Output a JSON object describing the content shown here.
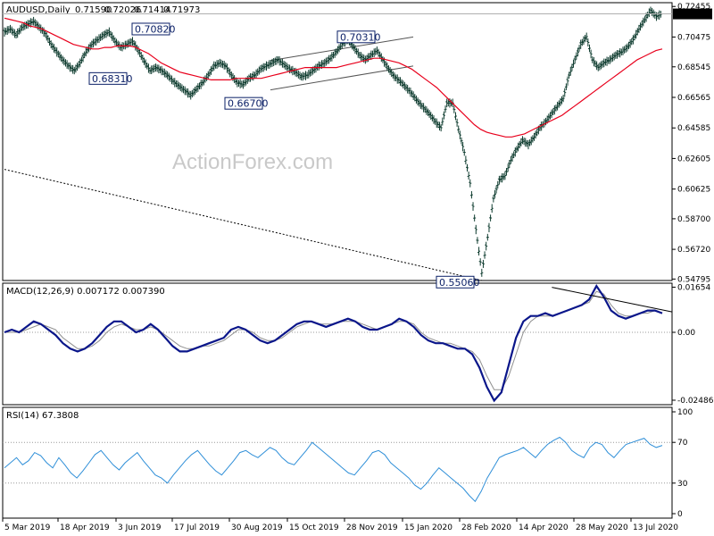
{
  "chart_data": [
    {
      "type": "candlestick",
      "symbol": "AUDUSD,Daily",
      "ohlc_header": [
        "0.71590",
        "0.72026",
        "0.71414",
        "0.71973"
      ],
      "last_price": "0.71973",
      "ylim": [
        0.547,
        0.727
      ],
      "y_ticks": [
        "0.72455",
        "0.70475",
        "0.68545",
        "0.66565",
        "0.64585",
        "0.62605",
        "0.60625",
        "0.58700",
        "0.56720",
        "0.54795"
      ],
      "x_tick_labels": [
        "5 Mar 2019",
        "18 Apr 2019",
        "3 Jun 2019",
        "17 Jul 2019",
        "30 Aug 2019",
        "15 Oct 2019",
        "28 Nov 2019",
        "15 Jan 2020",
        "28 Feb 2020",
        "14 Apr 2020",
        "28 May 2020",
        "13 Jul 2020"
      ],
      "watermark": "ActionForex.com",
      "annotations": [
        "0.70820",
        "0.68310",
        "0.66700",
        "0.70310",
        "0.55060"
      ],
      "close_series": [
        0.708,
        0.71,
        0.706,
        0.711,
        0.713,
        0.715,
        0.711,
        0.707,
        0.7,
        0.695,
        0.69,
        0.686,
        0.683,
        0.688,
        0.695,
        0.7,
        0.703,
        0.706,
        0.708,
        0.702,
        0.698,
        0.7,
        0.702,
        0.696,
        0.689,
        0.683,
        0.685,
        0.683,
        0.68,
        0.676,
        0.673,
        0.67,
        0.667,
        0.671,
        0.675,
        0.68,
        0.686,
        0.688,
        0.686,
        0.68,
        0.675,
        0.674,
        0.678,
        0.68,
        0.684,
        0.686,
        0.688,
        0.69,
        0.687,
        0.684,
        0.682,
        0.679,
        0.68,
        0.683,
        0.686,
        0.688,
        0.691,
        0.695,
        0.7,
        0.703,
        0.698,
        0.693,
        0.69,
        0.693,
        0.696,
        0.69,
        0.684,
        0.679,
        0.676,
        0.672,
        0.668,
        0.663,
        0.659,
        0.655,
        0.65,
        0.646,
        0.662,
        0.662,
        0.645,
        0.63,
        0.61,
        0.58,
        0.552,
        0.575,
        0.6,
        0.612,
        0.615,
        0.625,
        0.632,
        0.638,
        0.635,
        0.64,
        0.646,
        0.65,
        0.655,
        0.66,
        0.665,
        0.68,
        0.69,
        0.7,
        0.705,
        0.69,
        0.685,
        0.688,
        0.69,
        0.693,
        0.695,
        0.698,
        0.703,
        0.71,
        0.716,
        0.722,
        0.718,
        0.72
      ],
      "ma_series": [
        0.717,
        0.716,
        0.715,
        0.714,
        0.712,
        0.711,
        0.71,
        0.708,
        0.706,
        0.704,
        0.702,
        0.7,
        0.699,
        0.698,
        0.697,
        0.697,
        0.698,
        0.698,
        0.699,
        0.699,
        0.699,
        0.698,
        0.696,
        0.694,
        0.691,
        0.688,
        0.686,
        0.684,
        0.682,
        0.681,
        0.68,
        0.679,
        0.678,
        0.677,
        0.677,
        0.677,
        0.677,
        0.678,
        0.678,
        0.678,
        0.678,
        0.678,
        0.679,
        0.68,
        0.681,
        0.682,
        0.683,
        0.684,
        0.685,
        0.685,
        0.685,
        0.685,
        0.685,
        0.685,
        0.686,
        0.687,
        0.688,
        0.689,
        0.69,
        0.691,
        0.691,
        0.69,
        0.689,
        0.688,
        0.686,
        0.684,
        0.681,
        0.678,
        0.675,
        0.672,
        0.668,
        0.664,
        0.66,
        0.656,
        0.652,
        0.648,
        0.645,
        0.643,
        0.642,
        0.641,
        0.64,
        0.64,
        0.641,
        0.642,
        0.644,
        0.646,
        0.648,
        0.65,
        0.652,
        0.654,
        0.657,
        0.66,
        0.663,
        0.666,
        0.669,
        0.672,
        0.675,
        0.678,
        0.681,
        0.684,
        0.687,
        0.69,
        0.692,
        0.694,
        0.696,
        0.697
      ],
      "long_ma_line": [
        [
          0,
          0.619
        ],
        [
          1,
          0.547
        ]
      ]
    },
    {
      "type": "line",
      "name": "MACD(12,26,9) 0.007172 0.007390",
      "y_ticks": [
        "0.01654",
        "0.00",
        "-0.02486"
      ],
      "ylim": [
        -0.0265,
        0.018
      ],
      "macd": [
        0.0,
        0.001,
        0.0,
        0.002,
        0.004,
        0.003,
        0.001,
        -0.001,
        -0.004,
        -0.006,
        -0.007,
        -0.006,
        -0.004,
        -0.001,
        0.002,
        0.004,
        0.004,
        0.002,
        0.0,
        0.001,
        0.003,
        0.001,
        -0.002,
        -0.005,
        -0.007,
        -0.007,
        -0.006,
        -0.005,
        -0.004,
        -0.003,
        -0.002,
        0.001,
        0.002,
        0.001,
        -0.001,
        -0.003,
        -0.004,
        -0.003,
        -0.001,
        0.001,
        0.003,
        0.004,
        0.004,
        0.003,
        0.002,
        0.003,
        0.004,
        0.005,
        0.004,
        0.002,
        0.001,
        0.001,
        0.002,
        0.003,
        0.005,
        0.004,
        0.002,
        -0.001,
        -0.003,
        -0.004,
        -0.004,
        -0.005,
        -0.006,
        -0.006,
        -0.008,
        -0.013,
        -0.02,
        -0.025,
        -0.022,
        -0.012,
        -0.002,
        0.004,
        0.006,
        0.006,
        0.007,
        0.006,
        0.007,
        0.008,
        0.009,
        0.01,
        0.012,
        0.017,
        0.013,
        0.008,
        0.006,
        0.005,
        0.006,
        0.007,
        0.008,
        0.008,
        0.007
      ],
      "signal": [
        0.0,
        0.0,
        0.0,
        0.001,
        0.002,
        0.003,
        0.002,
        0.001,
        -0.002,
        -0.004,
        -0.006,
        -0.006,
        -0.005,
        -0.003,
        0.0,
        0.002,
        0.003,
        0.002,
        0.001,
        0.001,
        0.002,
        0.001,
        -0.001,
        -0.003,
        -0.005,
        -0.006,
        -0.006,
        -0.005,
        -0.005,
        -0.004,
        -0.003,
        -0.001,
        0.001,
        0.001,
        0.0,
        -0.002,
        -0.003,
        -0.003,
        -0.002,
        0.0,
        0.002,
        0.003,
        0.004,
        0.003,
        0.003,
        0.003,
        0.004,
        0.004,
        0.004,
        0.003,
        0.002,
        0.001,
        0.002,
        0.003,
        0.004,
        0.004,
        0.003,
        0.0,
        -0.002,
        -0.003,
        -0.004,
        -0.004,
        -0.005,
        -0.006,
        -0.007,
        -0.01,
        -0.016,
        -0.021,
        -0.021,
        -0.016,
        -0.008,
        0.0,
        0.004,
        0.006,
        0.006,
        0.006,
        0.007,
        0.008,
        0.009,
        0.01,
        0.011,
        0.015,
        0.014,
        0.01,
        0.007,
        0.006,
        0.006,
        0.007,
        0.007,
        0.008,
        0.007
      ],
      "trendline_end_points": [
        [
          0.82,
          0.0165
        ],
        [
          1.0,
          0.0075
        ]
      ]
    },
    {
      "type": "line",
      "name": "RSI(14) 67.3808",
      "ylim": [
        0,
        100
      ],
      "y_ticks": [
        "100",
        "70",
        "30",
        "0"
      ],
      "rsi": [
        45,
        50,
        55,
        48,
        52,
        60,
        57,
        50,
        45,
        55,
        48,
        40,
        35,
        42,
        50,
        58,
        62,
        55,
        48,
        43,
        50,
        55,
        60,
        52,
        45,
        38,
        35,
        30,
        38,
        45,
        52,
        58,
        62,
        55,
        48,
        42,
        38,
        45,
        52,
        60,
        62,
        58,
        55,
        60,
        65,
        62,
        55,
        50,
        48,
        55,
        62,
        70,
        65,
        60,
        55,
        50,
        45,
        40,
        38,
        45,
        52,
        60,
        62,
        58,
        50,
        45,
        40,
        35,
        28,
        24,
        30,
        38,
        45,
        40,
        35,
        30,
        25,
        18,
        12,
        22,
        35,
        45,
        55,
        58,
        60,
        62,
        65,
        60,
        55,
        62,
        68,
        72,
        75,
        70,
        62,
        58,
        55,
        65,
        70,
        68,
        60,
        55,
        62,
        68,
        70,
        72,
        74,
        68,
        65,
        67
      ]
    }
  ]
}
